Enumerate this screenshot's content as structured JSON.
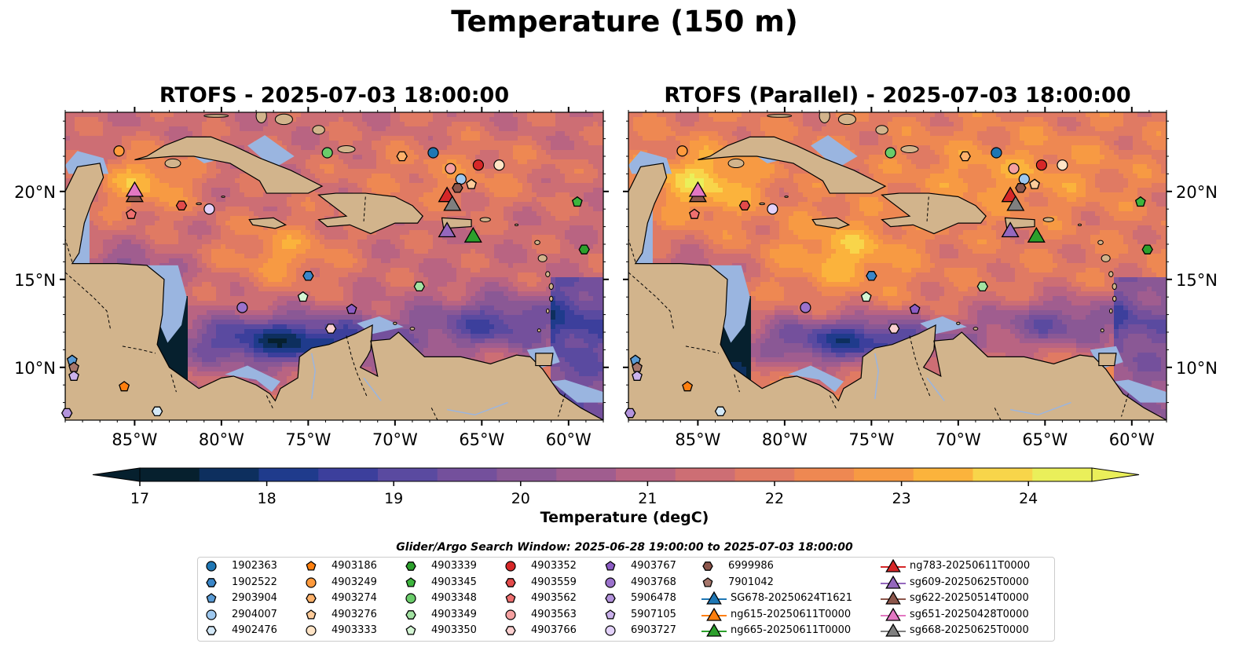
{
  "figure": {
    "suptitle": "Temperature (150 m)",
    "panels": [
      {
        "title": "RTOFS - 2025-07-03 18:00:00",
        "variant": "rtofs"
      },
      {
        "title": "RTOFS (Parallel) - 2025-07-03 18:00:00",
        "variant": "parallel"
      }
    ],
    "lon_ticks": [
      "85°W",
      "80°W",
      "75°W",
      "70°W",
      "65°W",
      "60°W"
    ],
    "lat_ticks": [
      "20°N",
      "15°N",
      "10°N"
    ],
    "extent": {
      "lon": [
        -89,
        -58
      ],
      "lat": [
        7,
        24.5
      ]
    },
    "colors": {
      "land": "#d2b48c",
      "shallow": "#9ab5e0",
      "border": "#000000"
    }
  },
  "colorbar": {
    "label": "Temperature (degC)",
    "ticks": [
      "17",
      "18",
      "19",
      "20",
      "21",
      "22",
      "23",
      "24"
    ],
    "range": [
      17,
      24.5
    ],
    "extend": "both",
    "colors": [
      "#06202e",
      "#0d2f5e",
      "#1f3b8c",
      "#3c3f9c",
      "#5a4aa0",
      "#74509c",
      "#8a5895",
      "#a05d8f",
      "#b96482",
      "#cd6e74",
      "#e07a63",
      "#ee8852",
      "#f79a43",
      "#fbb33c",
      "#f8d54a",
      "#eaef5a"
    ]
  },
  "legend": {
    "window_title": "Glider/Argo Search Window: 2025-06-28 19:00:00 to 2025-07-03 18:00:00",
    "columns": [
      [
        {
          "label": "1902363",
          "marker": "circle",
          "color": "#1f77b4"
        },
        {
          "label": "1902522",
          "marker": "hexagon",
          "color": "#3a86c8"
        },
        {
          "label": "2903904",
          "marker": "pentagon",
          "color": "#5a9bd5"
        },
        {
          "label": "2904007",
          "marker": "circle",
          "color": "#9ec8ee"
        },
        {
          "label": "4902476",
          "marker": "hexagon",
          "color": "#d3e8f7"
        }
      ],
      [
        {
          "label": "4903186",
          "marker": "pentagon",
          "color": "#ff7f0e"
        },
        {
          "label": "4903249",
          "marker": "circle",
          "color": "#ff9a3c"
        },
        {
          "label": "4903274",
          "marker": "hexagon",
          "color": "#ffb26b"
        },
        {
          "label": "4903276",
          "marker": "pentagon",
          "color": "#ffcc9a"
        },
        {
          "label": "4903333",
          "marker": "circle",
          "color": "#ffe4c6"
        }
      ],
      [
        {
          "label": "4903339",
          "marker": "hexagon",
          "color": "#2ca02c"
        },
        {
          "label": "4903345",
          "marker": "pentagon",
          "color": "#3db53d"
        },
        {
          "label": "4903348",
          "marker": "circle",
          "color": "#6acc6a"
        },
        {
          "label": "4903349",
          "marker": "hexagon",
          "color": "#a2e2a2"
        },
        {
          "label": "4903350",
          "marker": "pentagon",
          "color": "#d4f5d4"
        }
      ],
      [
        {
          "label": "4903352",
          "marker": "circle",
          "color": "#d62728"
        },
        {
          "label": "4903559",
          "marker": "hexagon",
          "color": "#e34a4a"
        },
        {
          "label": "4903562",
          "marker": "pentagon",
          "color": "#ee6f6f"
        },
        {
          "label": "4903563",
          "marker": "circle",
          "color": "#f5a0a0"
        },
        {
          "label": "4903766",
          "marker": "hexagon",
          "color": "#fbd0d0"
        }
      ],
      [
        {
          "label": "4903767",
          "marker": "pentagon",
          "color": "#8c5cc4"
        },
        {
          "label": "4903768",
          "marker": "circle",
          "color": "#9b72cc"
        },
        {
          "label": "5906478",
          "marker": "hexagon",
          "color": "#b393dc"
        },
        {
          "label": "5907105",
          "marker": "pentagon",
          "color": "#cbb2ec"
        },
        {
          "label": "6903727",
          "marker": "circle",
          "color": "#e3d2fa"
        }
      ],
      [
        {
          "label": "6999986",
          "marker": "hexagon",
          "color": "#8c564b"
        },
        {
          "label": "7901042",
          "marker": "pentagon",
          "color": "#a6766b"
        },
        {
          "label": "SG678-20250624T1621",
          "marker": "triangle",
          "color": "#1f77b4"
        },
        {
          "label": "ng615-20250611T0000",
          "marker": "triangle",
          "color": "#ff7f0e"
        },
        {
          "label": "ng665-20250611T0000",
          "marker": "triangle",
          "color": "#2ca02c"
        }
      ],
      [
        {
          "label": "ng783-20250611T0000",
          "marker": "triangle",
          "color": "#d62728"
        },
        {
          "label": "sg609-20250625T0000",
          "marker": "triangle",
          "color": "#9467bd"
        },
        {
          "label": "sg622-20250514T0000",
          "marker": "triangle",
          "color": "#8c564b"
        },
        {
          "label": "sg651-20250428T0000",
          "marker": "triangle",
          "color": "#e377c2"
        },
        {
          "label": "sg668-20250625T0000",
          "marker": "triangle",
          "color": "#7f7f7f"
        }
      ]
    ]
  },
  "observations": {
    "floats": [
      {
        "id": "1902363",
        "lon": -67.8,
        "lat": 22.2
      },
      {
        "id": "1902522",
        "lon": -75.0,
        "lat": 15.2
      },
      {
        "id": "2903904",
        "lon": -88.6,
        "lat": 10.4
      },
      {
        "id": "2904007",
        "lon": -66.2,
        "lat": 20.7
      },
      {
        "id": "4902476",
        "lon": -83.7,
        "lat": 7.5
      },
      {
        "id": "4903186",
        "lon": -85.6,
        "lat": 8.9
      },
      {
        "id": "4903249",
        "lon": -85.9,
        "lat": 22.3
      },
      {
        "id": "4903274",
        "lon": -69.6,
        "lat": 22.0
      },
      {
        "id": "4903276",
        "lon": -65.6,
        "lat": 20.4
      },
      {
        "id": "4903333",
        "lon": -64.0,
        "lat": 21.5
      },
      {
        "id": "4903339",
        "lon": -59.1,
        "lat": 16.7
      },
      {
        "id": "4903345",
        "lon": -59.5,
        "lat": 19.4
      },
      {
        "id": "4903348",
        "lon": -73.9,
        "lat": 22.2
      },
      {
        "id": "4903349",
        "lon": -68.6,
        "lat": 14.6
      },
      {
        "id": "4903350",
        "lon": -75.3,
        "lat": 14.0
      },
      {
        "id": "4903352",
        "lon": -65.2,
        "lat": 21.5
      },
      {
        "id": "4903559",
        "lon": -82.3,
        "lat": 19.2
      },
      {
        "id": "4903562",
        "lon": -85.2,
        "lat": 18.7
      },
      {
        "id": "4903563",
        "lon": -66.8,
        "lat": 21.3
      },
      {
        "id": "4903766",
        "lon": -73.7,
        "lat": 12.2
      },
      {
        "id": "4903767",
        "lon": -72.5,
        "lat": 13.3
      },
      {
        "id": "4903768",
        "lon": -78.8,
        "lat": 13.4
      },
      {
        "id": "5906478",
        "lon": -88.9,
        "lat": 7.4
      },
      {
        "id": "5907105",
        "lon": -88.5,
        "lat": 9.5
      },
      {
        "id": "6903727",
        "lon": -80.7,
        "lat": 19.0
      },
      {
        "id": "6999986",
        "lon": -66.4,
        "lat": 20.2
      },
      {
        "id": "7901042",
        "lon": -88.5,
        "lat": 10.0
      }
    ],
    "gliders": [
      {
        "id": "ng783-20250611T0000",
        "lon": -67.0,
        "lat": 19.8
      },
      {
        "id": "sg668-20250625T0000",
        "lon": -66.7,
        "lat": 19.3
      },
      {
        "id": "sg609-20250625T0000",
        "lon": -67.0,
        "lat": 17.8
      },
      {
        "id": "ng665-20250611T0000",
        "lon": -65.5,
        "lat": 17.5
      },
      {
        "id": "sg622-20250514T0000",
        "lon": -85.0,
        "lat": 19.8
      },
      {
        "id": "sg651-20250428T0000",
        "lon": -85.0,
        "lat": 20.1
      }
    ]
  }
}
